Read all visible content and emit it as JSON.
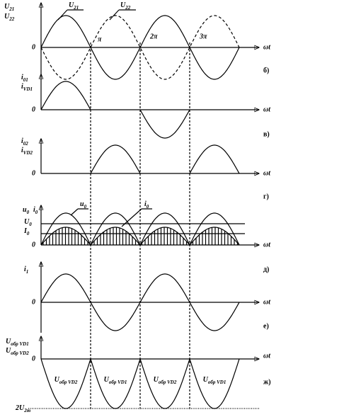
{
  "panels": [
    {
      "y_labels": [
        [
          "U",
          "21"
        ],
        [
          "U",
          "22"
        ]
      ],
      "curve_labels": [
        [
          "U",
          "21"
        ],
        [
          "U",
          "22"
        ]
      ],
      "x_ticks": [
        "π",
        "2π",
        "3π"
      ],
      "zero": "0",
      "axis_label": "ωt",
      "id_label": "б)"
    },
    {
      "y_labels": [
        [
          "i",
          "01"
        ],
        [
          "i",
          "VD1"
        ]
      ],
      "zero": "0",
      "axis_label": "ωt",
      "id_label": "в)"
    },
    {
      "y_labels": [
        [
          "i",
          "02"
        ],
        [
          "i",
          "VD2"
        ]
      ],
      "zero": "0",
      "axis_label": "ωt",
      "id_label": "г)"
    },
    {
      "y_labels": [
        [
          "u",
          "0"
        ],
        [
          "i",
          "0"
        ]
      ],
      "level_labels": [
        [
          "U",
          "0"
        ],
        [
          "I",
          "0"
        ]
      ],
      "curve_labels": [
        [
          "u",
          "0"
        ],
        [
          "i",
          "0"
        ]
      ],
      "zero": "0",
      "axis_label": "ωt",
      "id_label": "д)"
    },
    {
      "y_labels": [
        [
          "i",
          "1"
        ]
      ],
      "zero": "0",
      "axis_label": "ωt",
      "id_label": "е)"
    },
    {
      "y_labels": [
        [
          "U",
          "обр VD1"
        ],
        [
          "U",
          "обр VD2"
        ]
      ],
      "curve_labels": [
        [
          "U",
          "обр VD2"
        ],
        [
          "U",
          "обр VD1"
        ],
        [
          "U",
          "обр VD2"
        ],
        [
          "U",
          "обр VD1"
        ]
      ],
      "bottom_label": [
        "2U",
        "2m"
      ],
      "zero": "0",
      "axis_label": "ωt",
      "id_label": "ж)"
    }
  ]
}
